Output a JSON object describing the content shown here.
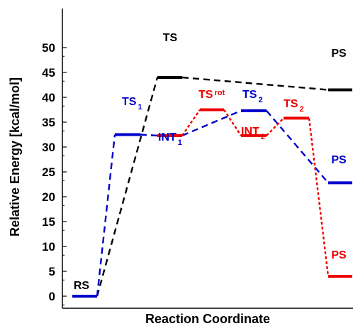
{
  "chart_data": {
    "type": "line",
    "title": "",
    "xlabel": "Reaction Coordinate",
    "ylabel": "Relative Energy [kcal/mol]",
    "ylim": [
      0,
      52
    ],
    "yticks": [
      0,
      5,
      10,
      15,
      20,
      25,
      30,
      35,
      40,
      45,
      50
    ],
    "grid": false,
    "legend": "none",
    "series": [
      {
        "color": "#000000",
        "dash": "dashed",
        "levels": [
          {
            "label": "RS",
            "sub": "",
            "value": 0
          },
          {
            "label": "TS",
            "sub": "",
            "value": 44
          },
          {
            "label": "PS",
            "sub": "",
            "value": 41.5
          }
        ]
      },
      {
        "color": "#0000cc",
        "dash": "dashed",
        "levels": [
          {
            "label": "RS",
            "sub": "",
            "value": 0
          },
          {
            "label": "TS",
            "sub": "1",
            "value": 32.5
          },
          {
            "label": "INT",
            "sub": "1",
            "value": 32.3
          },
          {
            "label": "TS",
            "sub": "2",
            "value": 37.3
          },
          {
            "label": "PS",
            "sub": "",
            "value": 22.8
          }
        ]
      },
      {
        "color": "#ee0000",
        "dash": "dotted",
        "levels": [
          {
            "label": "INT",
            "sub": "1",
            "value": 32.3
          },
          {
            "label": "TS",
            "sub": "rot",
            "value": 37.5
          },
          {
            "label": "INT",
            "sub": "2",
            "value": 32.3
          },
          {
            "label": "TS",
            "sub": "2",
            "value": 35.8
          },
          {
            "label": "PS",
            "sub": "",
            "value": 4
          }
        ]
      }
    ],
    "state_labels": [
      {
        "text": "RS",
        "sub": "",
        "color": "#000000"
      },
      {
        "text": "TS",
        "sub": "",
        "color": "#000000"
      },
      {
        "text": "PS",
        "sub": "",
        "color": "#000000"
      },
      {
        "text": "TS",
        "sub": "1",
        "color": "#0000cc"
      },
      {
        "text": "INT",
        "sub": "1",
        "color": "#0000cc"
      },
      {
        "text": "TS",
        "sub": "2",
        "color": "#0000cc"
      },
      {
        "text": "PS",
        "sub": "",
        "color": "#0000cc"
      },
      {
        "text": "TS",
        "sub": "rot",
        "color": "#ee0000"
      },
      {
        "text": "INT",
        "sub": "2",
        "color": "#ee0000"
      },
      {
        "text": "TS",
        "sub": "2",
        "color": "#ee0000"
      },
      {
        "text": "PS",
        "sub": "",
        "color": "#ee0000"
      }
    ]
  }
}
